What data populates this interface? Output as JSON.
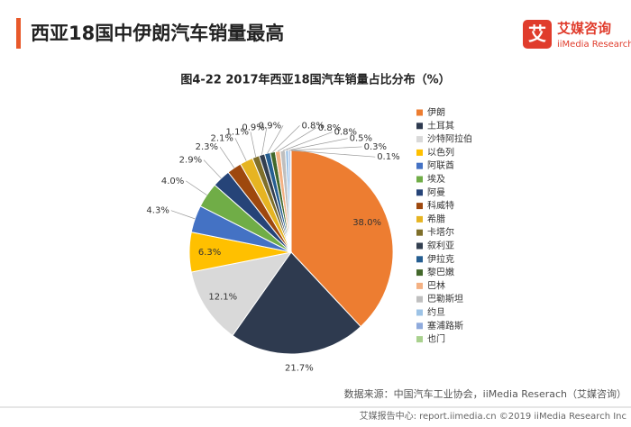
{
  "header": {
    "title": "西亚18国中伊朗汽车销量最高",
    "logo_name": "艾媒咨询",
    "logo_sub": "iiMedia Research",
    "logo_mark": "艾"
  },
  "chart_data": {
    "type": "pie",
    "title": "图4-22 2017年西亚18国汽车销量占比分布（%）",
    "categories": [
      "伊朗",
      "土耳其",
      "沙特阿拉伯",
      "以色列",
      "阿联酋",
      "埃及",
      "阿曼",
      "科威特",
      "希腊",
      "卡塔尔",
      "叙利亚",
      "伊拉克",
      "黎巴嫩",
      "巴林",
      "巴勒斯坦",
      "约旦",
      "塞浦路斯",
      "也门"
    ],
    "values": [
      38.0,
      21.7,
      12.1,
      6.3,
      4.3,
      4.0,
      2.9,
      2.3,
      2.1,
      1.1,
      0.9,
      0.9,
      0.8,
      0.8,
      0.8,
      0.5,
      0.3,
      0.1
    ],
    "value_labels": [
      "38.0%",
      "21.7%",
      "12.1%",
      "6.3%",
      "4.3%",
      "4.0%",
      "2.9%",
      "2.3%",
      "2.1%",
      "1.1%",
      "0.9%",
      "0.9%",
      "0.8%",
      "0.8%",
      "0.8%",
      "0.5%",
      "0.3%",
      "0.1%"
    ],
    "colors": [
      "#ed7d31",
      "#2e3a4f",
      "#d9d9d9",
      "#ffc000",
      "#4472c4",
      "#70ad47",
      "#264478",
      "#9e480e",
      "#e6b422",
      "#7f6f2a",
      "#333f50",
      "#255e91",
      "#43682b",
      "#f4b183",
      "#bfbfbf",
      "#9dc3e6",
      "#8faadc",
      "#a9d18e"
    ],
    "source": "数据来源：中国汽车工业协会，iiMedia Reserach（艾媒咨询）"
  },
  "footer": {
    "text": "艾媒报告中心: report.iimedia.cn ©2019 iiMedia Research Inc"
  }
}
